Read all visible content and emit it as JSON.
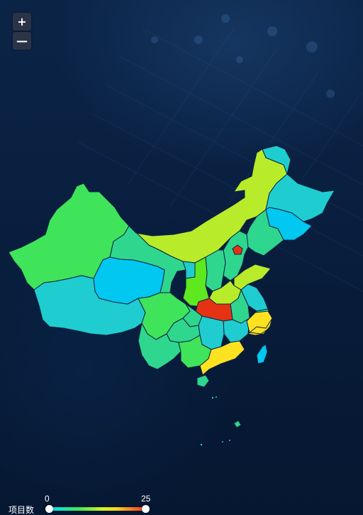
{
  "zoom": {
    "in_label": "+",
    "out_label": "—"
  },
  "legend": {
    "title": "项目数",
    "min": "0",
    "max": "25"
  },
  "colors": {
    "scale_low": "#00d8ff",
    "scale_mid": "#d8f21f",
    "scale_high": "#ff2f1f",
    "border": "#0d2240"
  }
}
